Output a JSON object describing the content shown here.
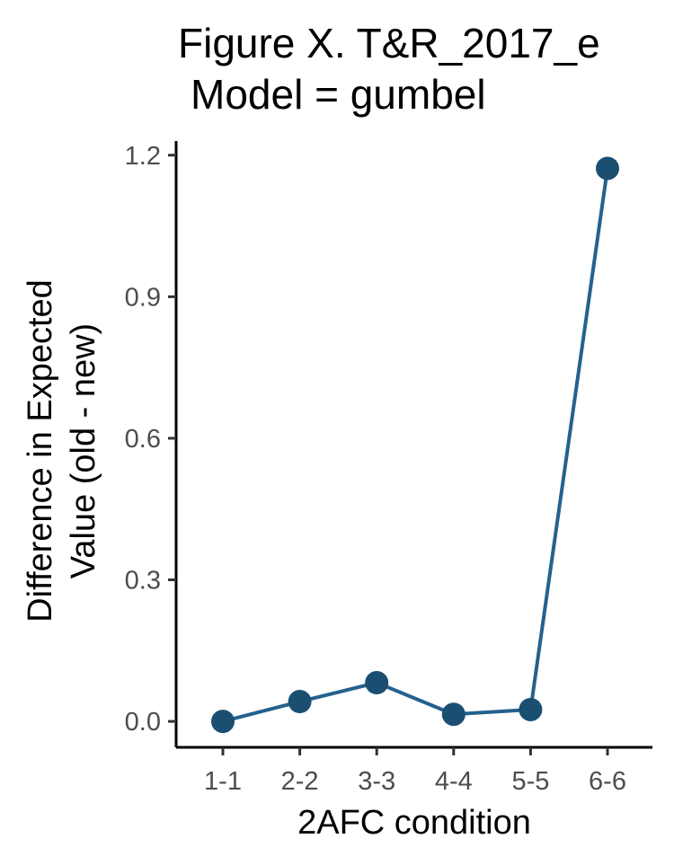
{
  "chart_data": {
    "type": "line",
    "title_lines": [
      "Figure X. T&R_2017_e",
      "Model = gumbel"
    ],
    "xlabel": "2AFC condition",
    "ylabel_lines": [
      "Difference in Expected",
      "Value (old - new)"
    ],
    "categories": [
      "1-1",
      "2-2",
      "3-3",
      "4-4",
      "5-5",
      "6-6"
    ],
    "values": [
      0.0,
      0.042,
      0.082,
      0.015,
      0.025,
      1.172
    ],
    "ylim": [
      -0.055,
      1.23
    ],
    "yticks": [
      0.0,
      0.3,
      0.6,
      0.9,
      1.2
    ],
    "ytick_labels": [
      "0.0",
      "0.3",
      "0.6",
      "0.9",
      "1.2"
    ],
    "grid": false,
    "legend": "none",
    "line_color": "#24618e",
    "point_color": "#1b4f72"
  }
}
